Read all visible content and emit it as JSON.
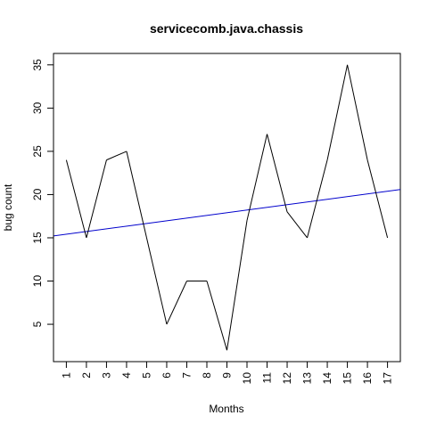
{
  "chart_data": {
    "type": "line",
    "title": "servicecomb.java.chassis",
    "xlabel": "Months",
    "ylabel": "bug count",
    "x": [
      1,
      2,
      3,
      4,
      5,
      6,
      7,
      8,
      9,
      10,
      11,
      12,
      13,
      14,
      15,
      16,
      17
    ],
    "x_tick_labels": [
      "1",
      "2",
      "3",
      "4",
      "5",
      "6",
      "7",
      "8",
      "9",
      "10",
      "11",
      "12",
      "13",
      "14",
      "15",
      "16",
      "17"
    ],
    "y_tick_labels": [
      "5",
      "10",
      "15",
      "20",
      "25",
      "30",
      "35"
    ],
    "series": [
      {
        "values": [
          24,
          15,
          24,
          25,
          15,
          5,
          10,
          10,
          2,
          17,
          27,
          18,
          15,
          24,
          35,
          24,
          15
        ],
        "color": "#000000"
      }
    ],
    "trend_line": {
      "x": [
        0,
        18
      ],
      "y": [
        15.1,
        20.7
      ],
      "color": "#0000cc"
    },
    "xlim": [
      0.36,
      17.64
    ],
    "ylim": [
      0.68,
      36.32
    ],
    "grid": false,
    "legend": "none"
  }
}
